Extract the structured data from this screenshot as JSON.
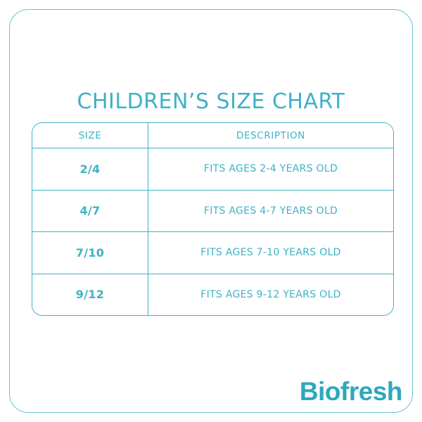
{
  "title": "CHILDREN’S SIZE CHART",
  "colors": {
    "accent_teal": "#3eb2c6",
    "frame_border_teal": "#68c3d1",
    "logo_teal": "#2ea8bc",
    "background": "#ffffff"
  },
  "table": {
    "headers": [
      "SIZE",
      "DESCRIPTION"
    ],
    "rows": [
      {
        "size": "2/4",
        "description": "FITS AGES 2-4 YEARS OLD"
      },
      {
        "size": "4/7",
        "description": "FITS AGES 4-7 YEARS OLD"
      },
      {
        "size": "7/10",
        "description": "FITS AGES 7-10 YEARS OLD"
      },
      {
        "size": "9/12",
        "description": "FITS AGES 9-12 YEARS OLD"
      }
    ]
  },
  "brand": {
    "name": "Biofresh"
  },
  "chart_data": {
    "type": "table",
    "title": "CHILDREN’S SIZE CHART",
    "columns": [
      "SIZE",
      "DESCRIPTION"
    ],
    "rows": [
      [
        "2/4",
        "FITS AGES 2-4 YEARS OLD"
      ],
      [
        "4/7",
        "FITS AGES 4-7 YEARS OLD"
      ],
      [
        "7/10",
        "FITS AGES 7-10 YEARS OLD"
      ],
      [
        "9/12",
        "FITS AGES 9-12 YEARS OLD"
      ]
    ],
    "legend_position": "none",
    "grid": true
  }
}
